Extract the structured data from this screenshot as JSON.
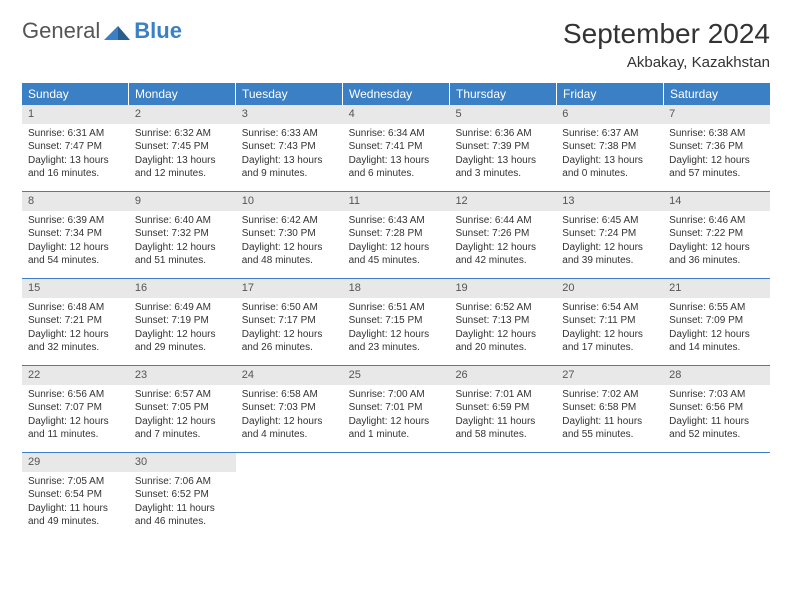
{
  "logo": {
    "text1": "General",
    "text2": "Blue"
  },
  "title": "September 2024",
  "location": "Akbakay, Kazakhstan",
  "colors": {
    "header_bg": "#3b7fc4",
    "header_text": "#ffffff",
    "daynum_bg": "#e8e8e8",
    "text": "#333333",
    "border": "#3b7fc4"
  },
  "dow": [
    "Sunday",
    "Monday",
    "Tuesday",
    "Wednesday",
    "Thursday",
    "Friday",
    "Saturday"
  ],
  "weeks": [
    [
      {
        "n": "1",
        "sr": "Sunrise: 6:31 AM",
        "ss": "Sunset: 7:47 PM",
        "d1": "Daylight: 13 hours",
        "d2": "and 16 minutes."
      },
      {
        "n": "2",
        "sr": "Sunrise: 6:32 AM",
        "ss": "Sunset: 7:45 PM",
        "d1": "Daylight: 13 hours",
        "d2": "and 12 minutes."
      },
      {
        "n": "3",
        "sr": "Sunrise: 6:33 AM",
        "ss": "Sunset: 7:43 PM",
        "d1": "Daylight: 13 hours",
        "d2": "and 9 minutes."
      },
      {
        "n": "4",
        "sr": "Sunrise: 6:34 AM",
        "ss": "Sunset: 7:41 PM",
        "d1": "Daylight: 13 hours",
        "d2": "and 6 minutes."
      },
      {
        "n": "5",
        "sr": "Sunrise: 6:36 AM",
        "ss": "Sunset: 7:39 PM",
        "d1": "Daylight: 13 hours",
        "d2": "and 3 minutes."
      },
      {
        "n": "6",
        "sr": "Sunrise: 6:37 AM",
        "ss": "Sunset: 7:38 PM",
        "d1": "Daylight: 13 hours",
        "d2": "and 0 minutes."
      },
      {
        "n": "7",
        "sr": "Sunrise: 6:38 AM",
        "ss": "Sunset: 7:36 PM",
        "d1": "Daylight: 12 hours",
        "d2": "and 57 minutes."
      }
    ],
    [
      {
        "n": "8",
        "sr": "Sunrise: 6:39 AM",
        "ss": "Sunset: 7:34 PM",
        "d1": "Daylight: 12 hours",
        "d2": "and 54 minutes."
      },
      {
        "n": "9",
        "sr": "Sunrise: 6:40 AM",
        "ss": "Sunset: 7:32 PM",
        "d1": "Daylight: 12 hours",
        "d2": "and 51 minutes."
      },
      {
        "n": "10",
        "sr": "Sunrise: 6:42 AM",
        "ss": "Sunset: 7:30 PM",
        "d1": "Daylight: 12 hours",
        "d2": "and 48 minutes."
      },
      {
        "n": "11",
        "sr": "Sunrise: 6:43 AM",
        "ss": "Sunset: 7:28 PM",
        "d1": "Daylight: 12 hours",
        "d2": "and 45 minutes."
      },
      {
        "n": "12",
        "sr": "Sunrise: 6:44 AM",
        "ss": "Sunset: 7:26 PM",
        "d1": "Daylight: 12 hours",
        "d2": "and 42 minutes."
      },
      {
        "n": "13",
        "sr": "Sunrise: 6:45 AM",
        "ss": "Sunset: 7:24 PM",
        "d1": "Daylight: 12 hours",
        "d2": "and 39 minutes."
      },
      {
        "n": "14",
        "sr": "Sunrise: 6:46 AM",
        "ss": "Sunset: 7:22 PM",
        "d1": "Daylight: 12 hours",
        "d2": "and 36 minutes."
      }
    ],
    [
      {
        "n": "15",
        "sr": "Sunrise: 6:48 AM",
        "ss": "Sunset: 7:21 PM",
        "d1": "Daylight: 12 hours",
        "d2": "and 32 minutes."
      },
      {
        "n": "16",
        "sr": "Sunrise: 6:49 AM",
        "ss": "Sunset: 7:19 PM",
        "d1": "Daylight: 12 hours",
        "d2": "and 29 minutes."
      },
      {
        "n": "17",
        "sr": "Sunrise: 6:50 AM",
        "ss": "Sunset: 7:17 PM",
        "d1": "Daylight: 12 hours",
        "d2": "and 26 minutes."
      },
      {
        "n": "18",
        "sr": "Sunrise: 6:51 AM",
        "ss": "Sunset: 7:15 PM",
        "d1": "Daylight: 12 hours",
        "d2": "and 23 minutes."
      },
      {
        "n": "19",
        "sr": "Sunrise: 6:52 AM",
        "ss": "Sunset: 7:13 PM",
        "d1": "Daylight: 12 hours",
        "d2": "and 20 minutes."
      },
      {
        "n": "20",
        "sr": "Sunrise: 6:54 AM",
        "ss": "Sunset: 7:11 PM",
        "d1": "Daylight: 12 hours",
        "d2": "and 17 minutes."
      },
      {
        "n": "21",
        "sr": "Sunrise: 6:55 AM",
        "ss": "Sunset: 7:09 PM",
        "d1": "Daylight: 12 hours",
        "d2": "and 14 minutes."
      }
    ],
    [
      {
        "n": "22",
        "sr": "Sunrise: 6:56 AM",
        "ss": "Sunset: 7:07 PM",
        "d1": "Daylight: 12 hours",
        "d2": "and 11 minutes."
      },
      {
        "n": "23",
        "sr": "Sunrise: 6:57 AM",
        "ss": "Sunset: 7:05 PM",
        "d1": "Daylight: 12 hours",
        "d2": "and 7 minutes."
      },
      {
        "n": "24",
        "sr": "Sunrise: 6:58 AM",
        "ss": "Sunset: 7:03 PM",
        "d1": "Daylight: 12 hours",
        "d2": "and 4 minutes."
      },
      {
        "n": "25",
        "sr": "Sunrise: 7:00 AM",
        "ss": "Sunset: 7:01 PM",
        "d1": "Daylight: 12 hours",
        "d2": "and 1 minute."
      },
      {
        "n": "26",
        "sr": "Sunrise: 7:01 AM",
        "ss": "Sunset: 6:59 PM",
        "d1": "Daylight: 11 hours",
        "d2": "and 58 minutes."
      },
      {
        "n": "27",
        "sr": "Sunrise: 7:02 AM",
        "ss": "Sunset: 6:58 PM",
        "d1": "Daylight: 11 hours",
        "d2": "and 55 minutes."
      },
      {
        "n": "28",
        "sr": "Sunrise: 7:03 AM",
        "ss": "Sunset: 6:56 PM",
        "d1": "Daylight: 11 hours",
        "d2": "and 52 minutes."
      }
    ],
    [
      {
        "n": "29",
        "sr": "Sunrise: 7:05 AM",
        "ss": "Sunset: 6:54 PM",
        "d1": "Daylight: 11 hours",
        "d2": "and 49 minutes."
      },
      {
        "n": "30",
        "sr": "Sunrise: 7:06 AM",
        "ss": "Sunset: 6:52 PM",
        "d1": "Daylight: 11 hours",
        "d2": "and 46 minutes."
      },
      null,
      null,
      null,
      null,
      null
    ]
  ]
}
